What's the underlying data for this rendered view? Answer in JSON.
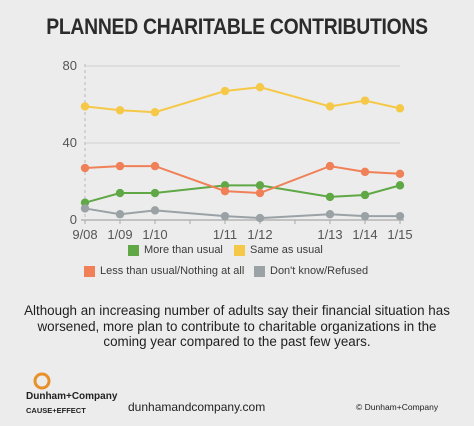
{
  "header": {
    "title": "PLANNED CHARITABLE CONTRIBUTIONS"
  },
  "chart_data": {
    "type": "line",
    "title": "PLANNED CHARITABLE CONTRIBUTIONS",
    "categories": [
      "9/08",
      "1/09",
      "1/10",
      "1/11",
      "1/12",
      "1/13",
      "1/14",
      "1/15"
    ],
    "x_positions": [
      "9/08",
      "1/09",
      "1/10",
      "",
      "1/11",
      "1/12",
      "",
      "1/13",
      "1/14",
      "1/15"
    ],
    "ylim": [
      0,
      80
    ],
    "yticks": [
      0,
      40,
      80
    ],
    "grid": true,
    "series": [
      {
        "name": "More than usual",
        "color": "#5fa845",
        "values": [
          9,
          14,
          14,
          18,
          18,
          12,
          13,
          18
        ]
      },
      {
        "name": "Same as usual",
        "color": "#f5c847",
        "values": [
          59,
          57,
          56,
          67,
          69,
          59,
          62,
          58
        ]
      },
      {
        "name": "Less than usual/Nothing at all",
        "color": "#f08058",
        "values": [
          27,
          28,
          28,
          15,
          14,
          28,
          25,
          24
        ]
      },
      {
        "name": "Don't know/Refused",
        "color": "#9aa2a6",
        "values": [
          6,
          3,
          5,
          2,
          1,
          3,
          2,
          2
        ]
      }
    ],
    "legend_position": "bottom"
  },
  "caption": "Although an increasing number of adults say their financial situation has worsened, more plan to contribute to charitable organizations in the coming year compared to the past few years.",
  "footer": {
    "logo_text": "Dunham+Company",
    "logo_tagline": "CAUSE+EFFECT",
    "website": "dunhamandcompany.com",
    "copyright": "© Dunham+Company"
  }
}
